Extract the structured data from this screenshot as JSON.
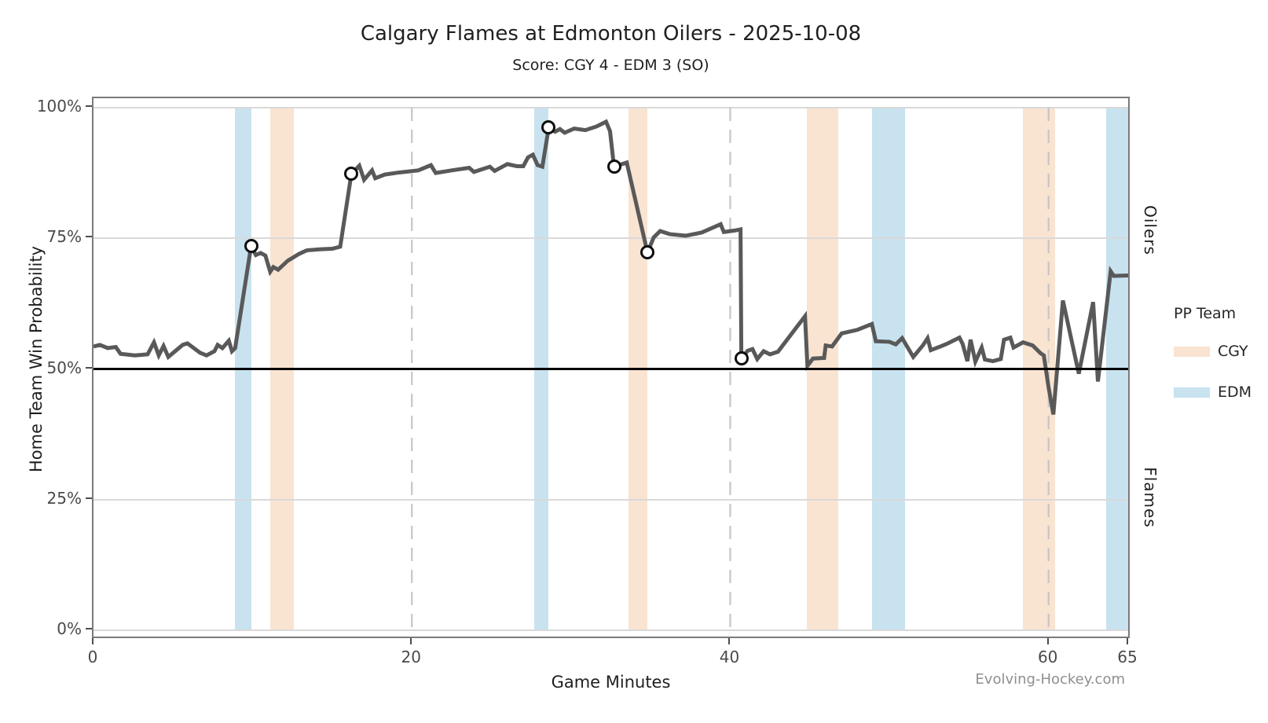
{
  "header": {
    "title": "Calgary Flames at Edmonton Oilers - 2025-10-08",
    "subtitle": "Score: CGY 4 - EDM 3 (SO)"
  },
  "right_labels": {
    "top": "Oilers",
    "bottom": "Flames"
  },
  "footer": {
    "watermark": "Evolving-Hockey.com"
  },
  "chart_data": {
    "type": "line",
    "title": "Calgary Flames at Edmonton Oilers - 2025-10-08",
    "subtitle": "Score: CGY 4 - EDM 3 (SO)",
    "xlabel": "Game Minutes",
    "ylabel": "Home Team Win Probability",
    "xlim": [
      0,
      65
    ],
    "ylim": [
      0,
      100
    ],
    "x_ticks": [
      {
        "value": 0,
        "label": "0"
      },
      {
        "value": 20,
        "label": "20"
      },
      {
        "value": 40,
        "label": "40"
      },
      {
        "value": 60,
        "label": "60"
      },
      {
        "value": 65,
        "label": "65"
      }
    ],
    "y_ticks": [
      {
        "value": 0,
        "label": "0%"
      },
      {
        "value": 25,
        "label": "25%"
      },
      {
        "value": 50,
        "label": "50%"
      },
      {
        "value": 75,
        "label": "75%"
      },
      {
        "value": 100,
        "label": "100%"
      }
    ],
    "period_lines_minutes": [
      20,
      40,
      60
    ],
    "reference_line_pct": 50,
    "grid": "horizontal-only",
    "legend_position": "right",
    "pp_legend": {
      "title": "PP Team",
      "items": [
        {
          "label": "CGY",
          "color": "#f9e3d1"
        },
        {
          "label": "EDM",
          "color": "#c8e2f0"
        }
      ]
    },
    "pp_intervals": [
      {
        "team": "EDM",
        "start": 8.9,
        "end": 9.9
      },
      {
        "team": "CGY",
        "start": 11.1,
        "end": 12.6
      },
      {
        "team": "EDM",
        "start": 27.7,
        "end": 28.6
      },
      {
        "team": "CGY",
        "start": 33.6,
        "end": 34.8
      },
      {
        "team": "CGY",
        "start": 44.8,
        "end": 46.8
      },
      {
        "team": "EDM",
        "start": 48.9,
        "end": 51.0
      },
      {
        "team": "CGY",
        "start": 58.4,
        "end": 60.4
      },
      {
        "team": "EDM",
        "start": 63.6,
        "end": 65.0
      }
    ],
    "goals": [
      {
        "minute": 9.9,
        "win_pct": 73.5
      },
      {
        "minute": 16.2,
        "win_pct": 87.3
      },
      {
        "minute": 28.6,
        "win_pct": 96.2
      },
      {
        "minute": 32.7,
        "win_pct": 88.7
      },
      {
        "minute": 34.8,
        "win_pct": 72.3
      },
      {
        "minute": 40.7,
        "win_pct": 52.0
      }
    ],
    "series": [
      {
        "name": "home_team_win_probability",
        "color": "#595959",
        "points": [
          [
            0,
            54.3
          ],
          [
            0.4,
            54.6
          ],
          [
            0.9,
            54.0
          ],
          [
            1.4,
            54.2
          ],
          [
            1.7,
            52.9
          ],
          [
            2.6,
            52.6
          ],
          [
            3.4,
            52.8
          ],
          [
            3.8,
            55.1
          ],
          [
            4.1,
            52.6
          ],
          [
            4.4,
            54.4
          ],
          [
            4.7,
            52.3
          ],
          [
            5.6,
            54.6
          ],
          [
            5.9,
            54.9
          ],
          [
            6.7,
            53.1
          ],
          [
            7.1,
            52.6
          ],
          [
            7.6,
            53.4
          ],
          [
            7.8,
            54.6
          ],
          [
            8.1,
            54.0
          ],
          [
            8.5,
            55.4
          ],
          [
            8.7,
            53.4
          ],
          [
            8.9,
            54.0
          ],
          [
            9.9,
            73.5
          ],
          [
            10.2,
            71.8
          ],
          [
            10.5,
            72.2
          ],
          [
            10.8,
            71.7
          ],
          [
            11.1,
            68.6
          ],
          [
            11.3,
            69.5
          ],
          [
            11.6,
            69.0
          ],
          [
            12.2,
            70.7
          ],
          [
            12.9,
            72.0
          ],
          [
            13.4,
            72.7
          ],
          [
            14.2,
            72.9
          ],
          [
            15.0,
            73.0
          ],
          [
            15.5,
            73.4
          ],
          [
            16.2,
            87.3
          ],
          [
            16.7,
            88.9
          ],
          [
            17.0,
            86.2
          ],
          [
            17.5,
            88.0
          ],
          [
            17.7,
            86.5
          ],
          [
            18.3,
            87.2
          ],
          [
            19.2,
            87.6
          ],
          [
            20.4,
            88.0
          ],
          [
            21.2,
            89.0
          ],
          [
            21.5,
            87.5
          ],
          [
            22.5,
            88.0
          ],
          [
            23.6,
            88.5
          ],
          [
            23.9,
            87.7
          ],
          [
            24.9,
            88.7
          ],
          [
            25.2,
            87.9
          ],
          [
            26.0,
            89.2
          ],
          [
            26.6,
            88.8
          ],
          [
            27.0,
            88.8
          ],
          [
            27.3,
            90.5
          ],
          [
            27.6,
            91.0
          ],
          [
            27.9,
            89.0
          ],
          [
            28.2,
            88.7
          ],
          [
            28.6,
            96.2
          ],
          [
            29.0,
            95.4
          ],
          [
            29.3,
            95.9
          ],
          [
            29.6,
            95.2
          ],
          [
            30.2,
            96.0
          ],
          [
            30.9,
            95.7
          ],
          [
            31.6,
            96.4
          ],
          [
            32.2,
            97.3
          ],
          [
            32.45,
            95.5
          ],
          [
            32.7,
            88.7
          ],
          [
            33.0,
            89.0
          ],
          [
            33.5,
            89.5
          ],
          [
            34.8,
            72.3
          ],
          [
            35.2,
            75.2
          ],
          [
            35.6,
            76.4
          ],
          [
            36.2,
            75.8
          ],
          [
            37.2,
            75.5
          ],
          [
            38.2,
            76.1
          ],
          [
            39.4,
            77.7
          ],
          [
            39.6,
            76.2
          ],
          [
            40.3,
            76.5
          ],
          [
            40.65,
            76.7
          ],
          [
            40.7,
            52.0
          ],
          [
            41.1,
            53.5
          ],
          [
            41.4,
            53.8
          ],
          [
            41.7,
            51.9
          ],
          [
            42.1,
            53.4
          ],
          [
            42.5,
            52.8
          ],
          [
            43.0,
            53.3
          ],
          [
            44.7,
            60.1
          ],
          [
            44.85,
            50.6
          ],
          [
            45.2,
            52.0
          ],
          [
            45.9,
            52.1
          ],
          [
            46.0,
            54.5
          ],
          [
            46.4,
            54.3
          ],
          [
            47.0,
            56.8
          ],
          [
            48.0,
            57.5
          ],
          [
            48.9,
            58.6
          ],
          [
            49.15,
            55.3
          ],
          [
            50.0,
            55.2
          ],
          [
            50.4,
            54.7
          ],
          [
            50.8,
            55.9
          ],
          [
            51.5,
            52.3
          ],
          [
            52.1,
            54.5
          ],
          [
            52.4,
            55.9
          ],
          [
            52.6,
            53.6
          ],
          [
            53.2,
            54.3
          ],
          [
            53.6,
            54.8
          ],
          [
            54.4,
            56.0
          ],
          [
            54.6,
            54.8
          ],
          [
            54.9,
            51.5
          ],
          [
            55.1,
            55.6
          ],
          [
            55.4,
            51.4
          ],
          [
            55.8,
            54.1
          ],
          [
            56.0,
            51.8
          ],
          [
            56.5,
            51.5
          ],
          [
            57.0,
            51.9
          ],
          [
            57.2,
            55.6
          ],
          [
            57.6,
            56.0
          ],
          [
            57.8,
            54.1
          ],
          [
            58.4,
            55.1
          ],
          [
            59.0,
            54.5
          ],
          [
            59.5,
            53.0
          ],
          [
            59.7,
            52.6
          ],
          [
            60.0,
            46.5
          ],
          [
            60.3,
            41.3
          ],
          [
            60.9,
            63.1
          ],
          [
            61.9,
            49.1
          ],
          [
            62.8,
            62.8
          ],
          [
            63.1,
            47.6
          ],
          [
            63.9,
            68.7
          ],
          [
            64.1,
            67.8
          ],
          [
            65,
            67.9
          ]
        ]
      }
    ],
    "colors": {
      "line": "#595959",
      "cgy_pp_band": "#f9e3d1",
      "edm_pp_band": "#c8e2f0",
      "gridline": "#d9d9d9",
      "period_dash": "#c6c6c6",
      "reference_line": "#000000",
      "plot_border": "#7a7a7a",
      "goal_marker_fill": "#ffffff",
      "goal_marker_ring": "#0d0d0d"
    }
  }
}
